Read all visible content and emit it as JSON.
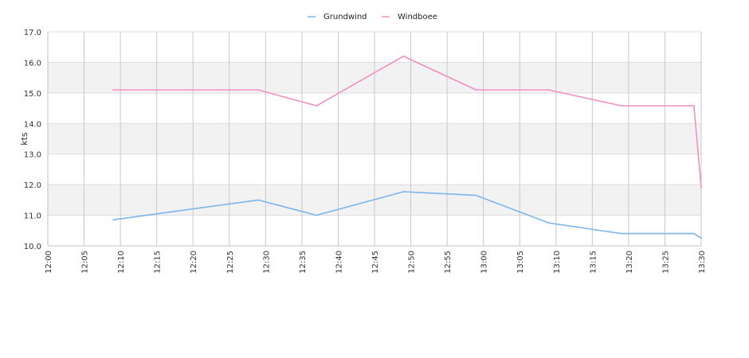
{
  "chart_data": {
    "type": "line",
    "xlabel": "",
    "ylabel": "kts",
    "xlim": [
      "12:00",
      "13:30"
    ],
    "ylim": [
      10.0,
      17.0
    ],
    "y_ticks": [
      "10.0",
      "11.0",
      "12.0",
      "13.0",
      "14.0",
      "15.0",
      "16.0",
      "17.0"
    ],
    "x_ticks": [
      "12:00",
      "12:05",
      "12:10",
      "12:15",
      "12:20",
      "12:25",
      "12:30",
      "12:35",
      "12:40",
      "12:45",
      "12:50",
      "12:55",
      "13:00",
      "13:05",
      "13:10",
      "13:15",
      "13:20",
      "13:25",
      "13:30"
    ],
    "grid": true,
    "banded_background": true,
    "legend": "top-center",
    "series": [
      {
        "name": "Grundwind",
        "color": "#7cb5ec",
        "points": [
          {
            "x": "12:09",
            "y": 10.85
          },
          {
            "x": "12:29",
            "y": 11.5
          },
          {
            "x": "12:37",
            "y": 11.0
          },
          {
            "x": "12:49",
            "y": 11.77
          },
          {
            "x": "12:59",
            "y": 11.65
          },
          {
            "x": "13:09",
            "y": 10.75
          },
          {
            "x": "13:19",
            "y": 10.4
          },
          {
            "x": "13:29",
            "y": 10.4
          },
          {
            "x": "13:30",
            "y": 10.25
          }
        ]
      },
      {
        "name": "Windboee",
        "color": "#f28fc3",
        "points": [
          {
            "x": "12:09",
            "y": 15.1
          },
          {
            "x": "12:29",
            "y": 15.1
          },
          {
            "x": "12:37",
            "y": 14.58
          },
          {
            "x": "12:49",
            "y": 16.2
          },
          {
            "x": "12:59",
            "y": 15.1
          },
          {
            "x": "13:09",
            "y": 15.1
          },
          {
            "x": "13:19",
            "y": 14.58
          },
          {
            "x": "13:29",
            "y": 14.58
          },
          {
            "x": "13:30",
            "y": 11.9
          }
        ]
      }
    ]
  }
}
